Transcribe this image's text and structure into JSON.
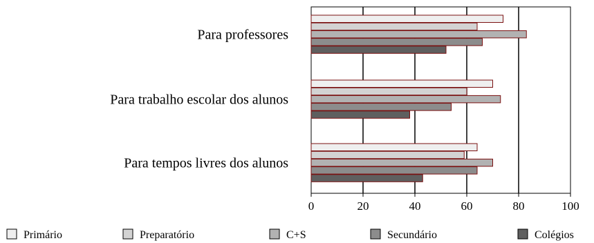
{
  "chart_data": {
    "type": "bar",
    "orientation": "horizontal",
    "categories": [
      "Para professores",
      "Para trabalho escolar dos alunos",
      "Para tempos livres dos alunos"
    ],
    "series": [
      {
        "name": "Primário",
        "values": [
          74,
          70,
          64
        ],
        "color": "#efefef"
      },
      {
        "name": "Preparatório",
        "values": [
          64,
          60,
          59
        ],
        "color": "#d3d3d3"
      },
      {
        "name": "C+S",
        "values": [
          83,
          73,
          70
        ],
        "color": "#b2b2b2"
      },
      {
        "name": "Secundário",
        "values": [
          66,
          54,
          64
        ],
        "color": "#8c8c8c"
      },
      {
        "name": "Colégios",
        "values": [
          52,
          38,
          43
        ],
        "color": "#5f5f5f"
      }
    ],
    "xlim": [
      0,
      100
    ],
    "xticks": [
      "0",
      "20",
      "40",
      "60",
      "80",
      "100"
    ],
    "grid": true,
    "legend_position": "bottom",
    "bar_edge_color": "#7a1010"
  }
}
